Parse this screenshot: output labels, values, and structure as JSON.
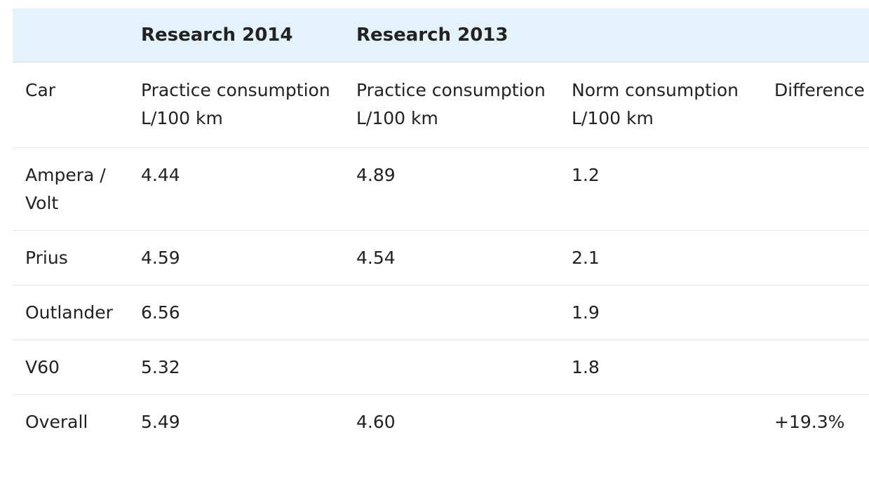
{
  "header_groups": {
    "research_2014": "Research 2014",
    "research_2013": "Research 2013"
  },
  "columns": {
    "car": "Car",
    "practice_2014": "Practice consumption L/100 km",
    "practice_2013": "Practice consumption L/100 km",
    "norm": "Norm consumption L/100 km",
    "difference": "Difference"
  },
  "rows": [
    {
      "car": "Ampera / Volt",
      "practice_2014": "4.44",
      "practice_2013": "4.89",
      "norm": "1.2",
      "difference": ""
    },
    {
      "car": "Prius",
      "practice_2014": "4.59",
      "practice_2013": "4.54",
      "norm": "2.1",
      "difference": ""
    },
    {
      "car": "Outlander",
      "practice_2014": "6.56",
      "practice_2013": "",
      "norm": "1.9",
      "difference": ""
    },
    {
      "car": "V60",
      "practice_2014": "5.32",
      "practice_2013": "",
      "norm": "1.8",
      "difference": ""
    },
    {
      "car": "Overall",
      "practice_2014": "5.49",
      "practice_2013": "4.60",
      "norm": "",
      "difference": "+19.3%"
    }
  ]
}
